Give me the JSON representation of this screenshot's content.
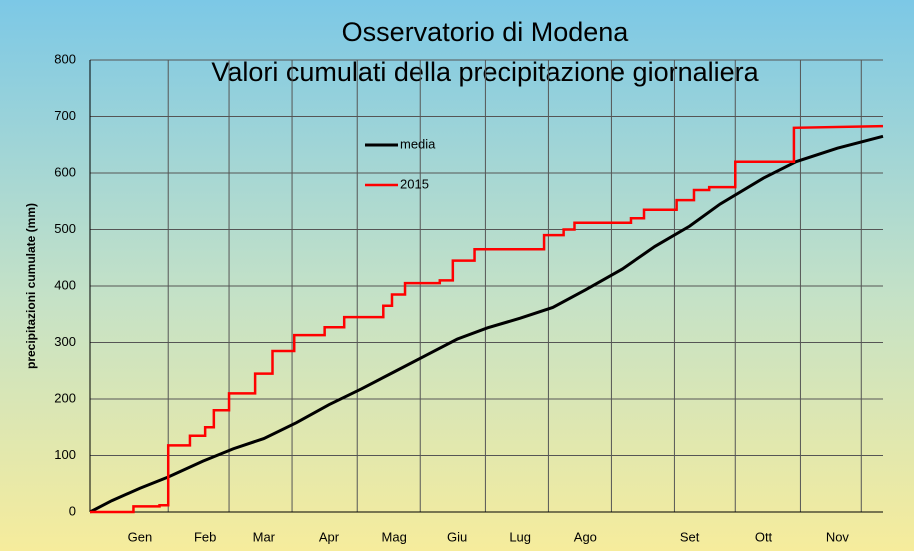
{
  "chart_data": {
    "type": "line",
    "title": "Osservatorio di Modena",
    "subtitle": "Valori cumulati della precipitazione giornaliera",
    "y_label": "precipitazioni cumulate (mm)",
    "xlim": [
      0,
      365
    ],
    "ylim": [
      0,
      800
    ],
    "yticks": [
      0,
      100,
      200,
      300,
      400,
      500,
      600,
      700,
      800
    ],
    "xticks": [
      {
        "value": 23,
        "label": "Gen"
      },
      {
        "value": 53,
        "label": "Feb"
      },
      {
        "value": 80,
        "label": "Mar"
      },
      {
        "value": 110,
        "label": "Apr"
      },
      {
        "value": 140,
        "label": "Mag"
      },
      {
        "value": 169,
        "label": "Giu"
      },
      {
        "value": 198,
        "label": "Lug"
      },
      {
        "value": 228,
        "label": "Ago"
      },
      {
        "value": 276,
        "label": "Set"
      },
      {
        "value": 310,
        "label": "Ott"
      },
      {
        "value": 344,
        "label": "Nov"
      }
    ],
    "xgrid": [
      36,
      64,
      93,
      123,
      152,
      182,
      211,
      240,
      269,
      297,
      327,
      355
    ],
    "grid": true,
    "legend": "top-center",
    "series": [
      {
        "name": "media",
        "color": "#000000",
        "x": [
          0,
          10,
          23,
          36,
          52,
          66,
          80,
          95,
          110,
          125,
          140,
          155,
          169,
          183,
          198,
          213,
          228,
          245,
          260,
          276,
          290,
          310,
          325,
          344,
          365
        ],
        "values": [
          0,
          20,
          42,
          62,
          90,
          112,
          130,
          158,
          190,
          218,
          248,
          278,
          306,
          326,
          343,
          362,
          393,
          430,
          470,
          506,
          545,
          591,
          620,
          644,
          665
        ]
      },
      {
        "name": "2015",
        "color": "#ff0000",
        "x": [
          0,
          20,
          20,
          32,
          32,
          36,
          36,
          46,
          46,
          53,
          53,
          57,
          57,
          64,
          64,
          76,
          76,
          84,
          84,
          94,
          94,
          108,
          108,
          117,
          117,
          135,
          135,
          139,
          139,
          145,
          145,
          161,
          161,
          167,
          167,
          177,
          177,
          209,
          209,
          218,
          218,
          223,
          223,
          249,
          249,
          255,
          255,
          270,
          270,
          278,
          278,
          285,
          285,
          297,
          297,
          324,
          324,
          365
        ],
        "values": [
          0,
          0,
          10,
          10,
          12,
          12,
          118,
          118,
          135,
          135,
          150,
          150,
          180,
          180,
          210,
          210,
          245,
          245,
          285,
          285,
          313,
          313,
          327,
          327,
          345,
          345,
          365,
          365,
          385,
          385,
          405,
          405,
          410,
          410,
          445,
          445,
          465,
          465,
          490,
          490,
          500,
          500,
          512,
          512,
          520,
          520,
          535,
          535,
          552,
          552,
          570,
          570,
          575,
          575,
          620,
          620,
          680,
          683
        ]
      }
    ]
  }
}
